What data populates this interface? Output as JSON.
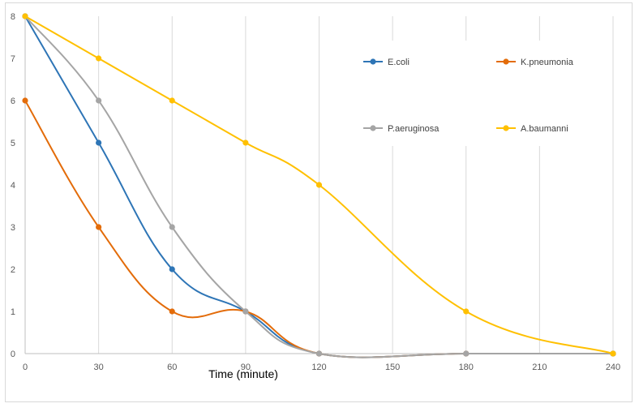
{
  "chart_data": {
    "type": "line",
    "title": "",
    "xlabel": "Time (minute)",
    "ylabel": "",
    "x": [
      0,
      30,
      60,
      90,
      120,
      180,
      240
    ],
    "xticks": [
      0,
      30,
      60,
      90,
      120,
      150,
      180,
      210,
      240
    ],
    "yticks": [
      0,
      1,
      2,
      3,
      4,
      5,
      6,
      7,
      8
    ],
    "xlim": [
      0,
      240
    ],
    "ylim": [
      0,
      8
    ],
    "grid": "vertical",
    "legend_position": "top-right",
    "series": [
      {
        "name": "E.coli",
        "color": "#2e75b6",
        "values": [
          8,
          5,
          2,
          1,
          0,
          0,
          0
        ]
      },
      {
        "name": "K.pneumonia",
        "color": "#e36c0a",
        "values": [
          6,
          3,
          1,
          1,
          0,
          0,
          0
        ]
      },
      {
        "name": "P.aeruginosa",
        "color": "#a5a5a5",
        "values": [
          8,
          6,
          3,
          1,
          0,
          0,
          0
        ]
      },
      {
        "name": "A.baumanni",
        "color": "#ffc000",
        "values": [
          8,
          7,
          6,
          5,
          4,
          1,
          0
        ]
      }
    ]
  }
}
